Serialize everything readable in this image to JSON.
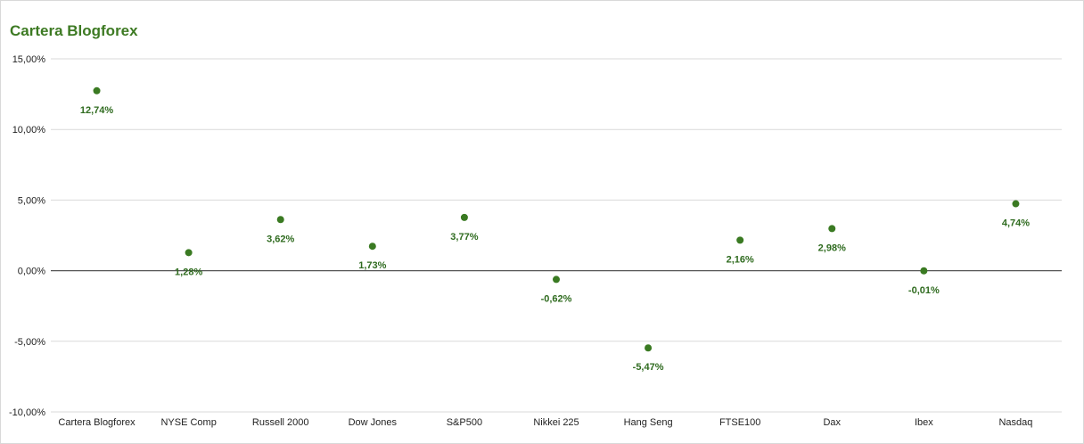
{
  "chart_data": {
    "type": "scatter",
    "title": "Cartera Blogforex",
    "categories": [
      "Cartera Blogforex",
      "NYSE Comp",
      "Russell 2000",
      "Dow Jones",
      "S&P500",
      "Nikkei 225",
      "Hang Seng",
      "FTSE100",
      "Dax",
      "Ibex",
      "Nasdaq"
    ],
    "values": [
      12.74,
      1.28,
      3.62,
      1.73,
      3.77,
      -0.62,
      -5.47,
      2.16,
      2.98,
      -0.01,
      4.74
    ],
    "data_labels": [
      "12,74%",
      "1,28%",
      "3,62%",
      "1,73%",
      "3,77%",
      "-0,62%",
      "-5,47%",
      "2,16%",
      "2,98%",
      "-0,01%",
      "4,74%"
    ],
    "ylim": [
      -10,
      15
    ],
    "yticks": [
      15,
      10,
      5,
      0,
      -5,
      -10
    ],
    "ytick_labels": [
      "15,00%",
      "10,00%",
      "5,00%",
      "0,00%",
      "-5,00%",
      "-10,00%"
    ],
    "xlabel": "",
    "ylabel": "",
    "grid": true,
    "legend": "none",
    "colors": {
      "title": "#3d7a23",
      "marker": "#3a7a22",
      "label": "#2f6b1f",
      "grid": "#d9d9d9",
      "zero_line": "#555555"
    }
  }
}
